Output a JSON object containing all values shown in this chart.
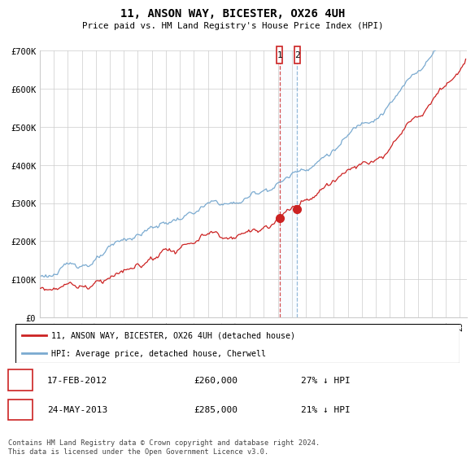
{
  "title": "11, ANSON WAY, BICESTER, OX26 4UH",
  "subtitle": "Price paid vs. HM Land Registry's House Price Index (HPI)",
  "ylim": [
    0,
    700000
  ],
  "xlim_start": 1995.0,
  "xlim_end": 2025.5,
  "yticks": [
    0,
    100000,
    200000,
    300000,
    400000,
    500000,
    600000,
    700000
  ],
  "ytick_labels": [
    "£0",
    "£100K",
    "£200K",
    "£300K",
    "£400K",
    "£500K",
    "£600K",
    "£700K"
  ],
  "hpi_color": "#7aaad0",
  "price_color": "#cc2222",
  "transaction1_date": 2012.12,
  "transaction1_price": 260000,
  "transaction2_date": 2013.38,
  "transaction2_price": 285000,
  "legend_line1": "11, ANSON WAY, BICESTER, OX26 4UH (detached house)",
  "legend_line2": "HPI: Average price, detached house, Cherwell",
  "table_row1": [
    "1",
    "17-FEB-2012",
    "£260,000",
    "27% ↓ HPI"
  ],
  "table_row2": [
    "2",
    "24-MAY-2013",
    "£285,000",
    "21% ↓ HPI"
  ],
  "footer": "Contains HM Land Registry data © Crown copyright and database right 2024.\nThis data is licensed under the Open Government Licence v3.0.",
  "background_color": "#ffffff",
  "grid_color": "#cccccc",
  "shade_color": "#ddeeff"
}
